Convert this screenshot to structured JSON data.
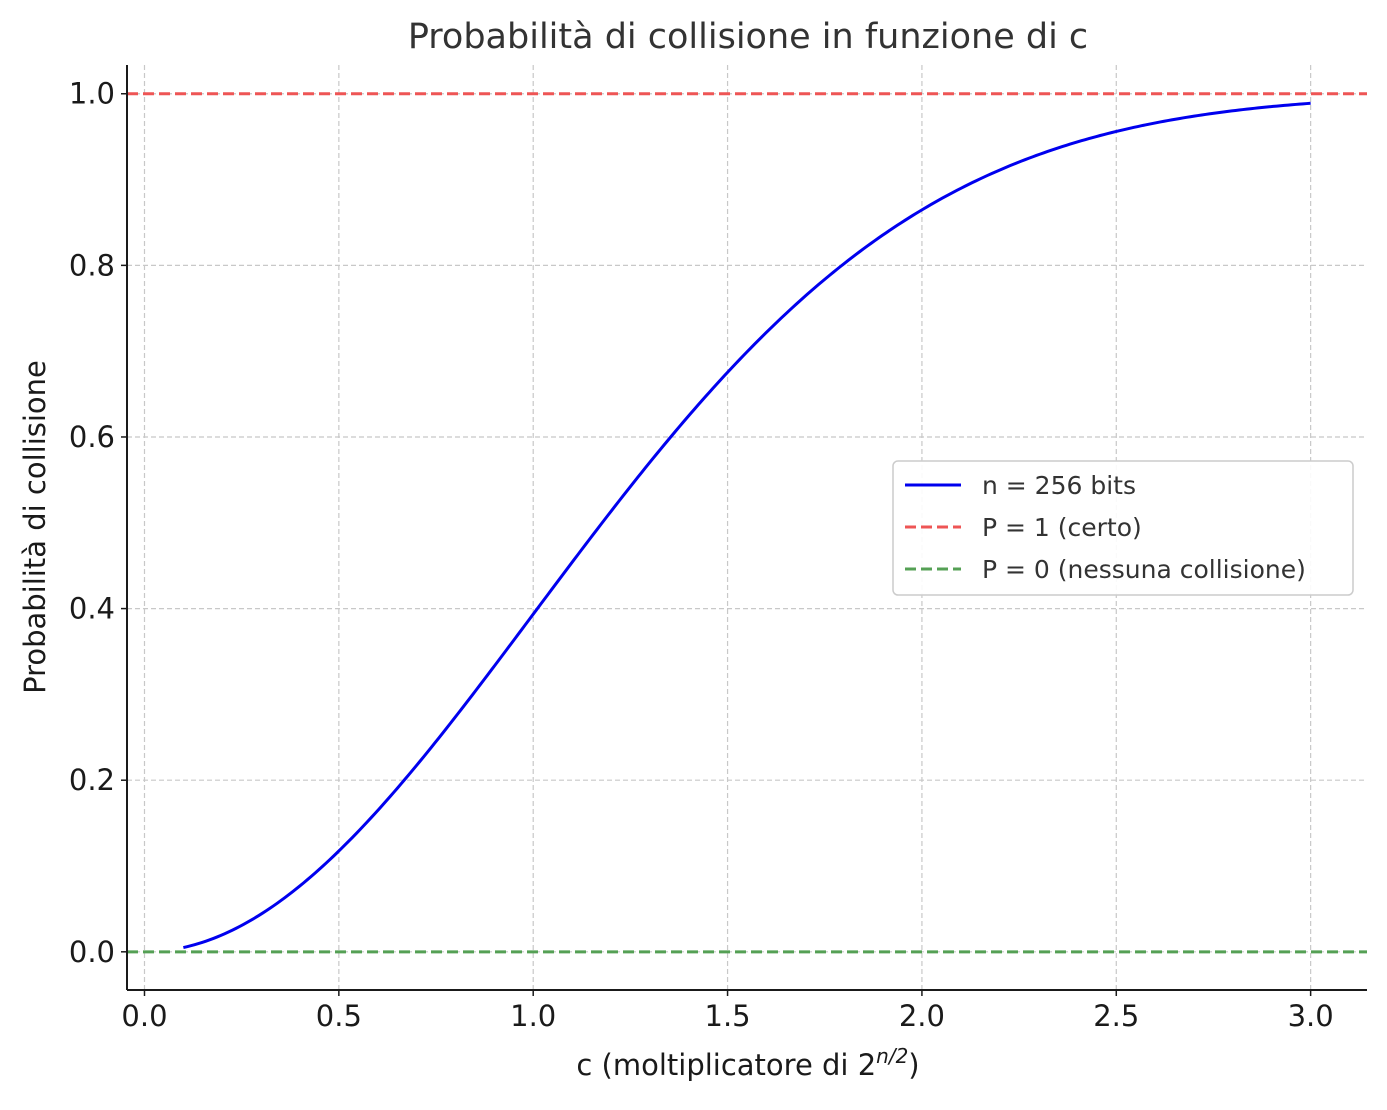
{
  "chart_data": {
    "type": "line",
    "title": "Probabilità di collisione in funzione di c",
    "xlabel": {
      "main": "c (moltiplicatore di 2",
      "superscript": "n/2",
      "close": ")"
    },
    "ylabel": "Probabilità di collisione",
    "xlim": [
      -0.045,
      3.145
    ],
    "ylim": [
      -0.0445,
      1.0335
    ],
    "xticks": [
      0.0,
      0.5,
      1.0,
      1.5,
      2.0,
      2.5,
      3.0
    ],
    "xtick_labels": [
      "0.0",
      "0.5",
      "1.0",
      "1.5",
      "2.0",
      "2.5",
      "3.0"
    ],
    "yticks": [
      0.0,
      0.2,
      0.4,
      0.6,
      0.8,
      1.0
    ],
    "ytick_labels": [
      "0.0",
      "0.2",
      "0.4",
      "0.6",
      "0.8",
      "1.0"
    ],
    "grid": true,
    "legend_position": "center-right",
    "series": [
      {
        "name": "n = 256 bits",
        "style": "solid",
        "color": "#0000ee",
        "function": "1 - exp(-c^2 / 2)",
        "x_range": [
          0.1,
          3.0
        ]
      },
      {
        "name": "P = 1 (certo)",
        "style": "dashed",
        "color": "#ee5555",
        "y": 1.0
      },
      {
        "name": "P = 0 (nessuna collisione)",
        "style": "dashed",
        "color": "#55a055",
        "y": 0.0
      }
    ],
    "colors": {
      "axis": "#1a1a1a",
      "grid": "#c8c8c8",
      "legend_border": "#cccccc"
    }
  }
}
